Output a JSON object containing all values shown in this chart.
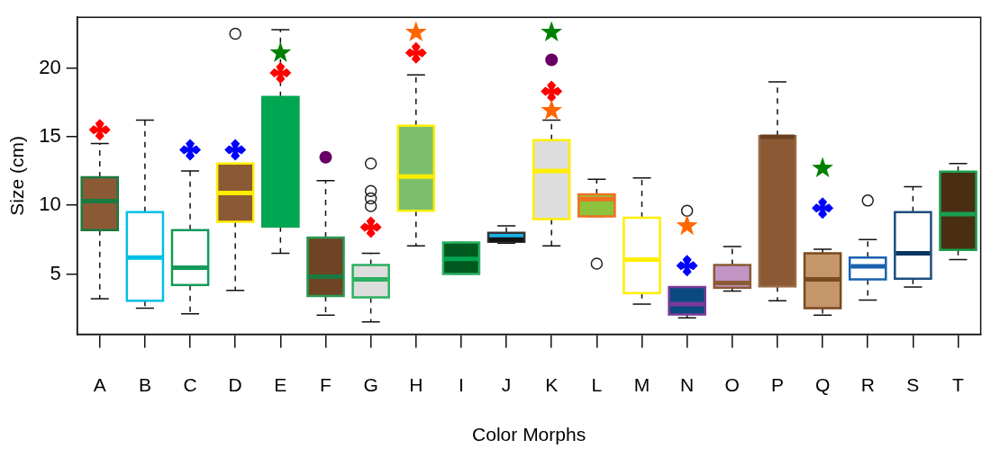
{
  "chart_data": {
    "type": "box",
    "xlabel": "Color Morphs",
    "ylabel": "Size (cm)",
    "categories": [
      "A",
      "B",
      "C",
      "D",
      "E",
      "F",
      "G",
      "H",
      "I",
      "J",
      "K",
      "L",
      "M",
      "N",
      "O",
      "P",
      "Q",
      "R",
      "S",
      "T"
    ],
    "ylim": [
      0.6,
      23.7
    ],
    "yticks": [
      5,
      10,
      15,
      20
    ],
    "grid": false,
    "legend": false,
    "colors": [
      "#8b5a35",
      "#ffffff",
      "#ffffff",
      "#8b5a35",
      "#00a651",
      "#6f4424",
      "#dddddd",
      "#7cc06e",
      "#005a20",
      "#1ab0e8",
      "#dddddd",
      "#8dc33c",
      "#ffffff",
      "#0b4a80",
      "#c295c5",
      "#8b5a35",
      "#c4966a",
      "#ffffff",
      "#ffffff",
      "#4a2e14"
    ],
    "boxes": [
      {
        "low": 3.2,
        "q1": 8.2,
        "median": 10.3,
        "q3": 12.05,
        "high": 14.5
      },
      {
        "low": 2.5,
        "q1": 3.05,
        "median": 6.2,
        "q3": 9.5,
        "high": 16.2
      },
      {
        "low": 2.1,
        "q1": 4.2,
        "median": 5.45,
        "q3": 8.2,
        "high": 12.5
      },
      {
        "low": 3.8,
        "q1": 8.8,
        "median": 10.9,
        "q3": 13.05,
        "high": 13.05,
        "outliers": [
          22.5
        ]
      },
      {
        "low": 6.5,
        "q1": 8.45,
        "median": 13,
        "q3": 17.9,
        "high": 22.8
      },
      {
        "low": 2.0,
        "q1": 3.4,
        "median": 4.8,
        "q3": 7.65,
        "high": 11.8
      },
      {
        "low": 1.5,
        "q1": 3.3,
        "median": 4.6,
        "q3": 5.65,
        "high": 6.5,
        "outliers": [
          13.05,
          11.05,
          10.5,
          9.95
        ]
      },
      {
        "low": 7.05,
        "q1": 9.6,
        "median": 12.1,
        "q3": 15.8,
        "high": 19.5
      },
      {
        "low": 5.0,
        "q1": 5.0,
        "median": 6.1,
        "q3": 7.3,
        "high": 7.3
      },
      {
        "low": 7.25,
        "q1": 7.35,
        "median": 7.5,
        "q3": 8.0,
        "high": 8.5
      },
      {
        "low": 7.05,
        "q1": 9.0,
        "median": 12.5,
        "q3": 14.75,
        "high": 16.2
      },
      {
        "low": 9.2,
        "q1": 9.2,
        "median": 10.45,
        "q3": 10.8,
        "high": 11.9,
        "outliers": [
          5.75
        ]
      },
      {
        "low": 2.8,
        "q1": 3.6,
        "median": 6.05,
        "q3": 9.1,
        "high": 12.0
      },
      {
        "low": 1.8,
        "q1": 2.05,
        "median": 2.8,
        "q3": 4.05,
        "high": 4.05,
        "outliers": [
          9.6
        ]
      },
      {
        "low": 3.75,
        "q1": 4.0,
        "median": 4.35,
        "q3": 5.65,
        "high": 7.0
      },
      {
        "low": 3.05,
        "q1": 4.1,
        "median": 15.0,
        "q3": 15.05,
        "high": 19.0
      },
      {
        "low": 2.0,
        "q1": 2.5,
        "median": 4.6,
        "q3": 6.5,
        "high": 6.8
      },
      {
        "low": 3.1,
        "q1": 4.6,
        "median": 5.55,
        "q3": 6.2,
        "high": 7.5,
        "outliers": [
          10.35
        ]
      },
      {
        "low": 4.05,
        "q1": 4.65,
        "median": 6.5,
        "q3": 9.5,
        "high": 11.35
      },
      {
        "low": 6.05,
        "q1": 6.75,
        "median": 9.35,
        "q3": 12.45,
        "high": 13.05
      }
    ],
    "series": [
      {
        "type": "scatter",
        "marker": "diamond",
        "color": "#ff0000",
        "x": [
          "A",
          "E",
          "G",
          "H",
          "K"
        ],
        "values": [
          15.5,
          19.65,
          8.4,
          21.1,
          18.3
        ]
      },
      {
        "type": "scatter",
        "marker": "diamond",
        "color": "#0000ff",
        "x": [
          "C",
          "D",
          "N",
          "Q"
        ],
        "values": [
          14.05,
          14.05,
          5.6,
          9.8
        ]
      },
      {
        "type": "scatter",
        "marker": "star",
        "color": "#008000",
        "x": [
          "E",
          "K",
          "Q"
        ],
        "values": [
          21.1,
          22.6,
          12.7
        ]
      },
      {
        "type": "scatter",
        "marker": "star",
        "color": "#ff6600",
        "x": [
          "H",
          "K",
          "N"
        ],
        "values": [
          22.6,
          16.9,
          8.5
        ]
      },
      {
        "type": "scatter",
        "marker": "circle",
        "color": "#660066",
        "x": [
          "F",
          "K"
        ],
        "values": [
          13.5,
          20.6
        ]
      }
    ]
  }
}
